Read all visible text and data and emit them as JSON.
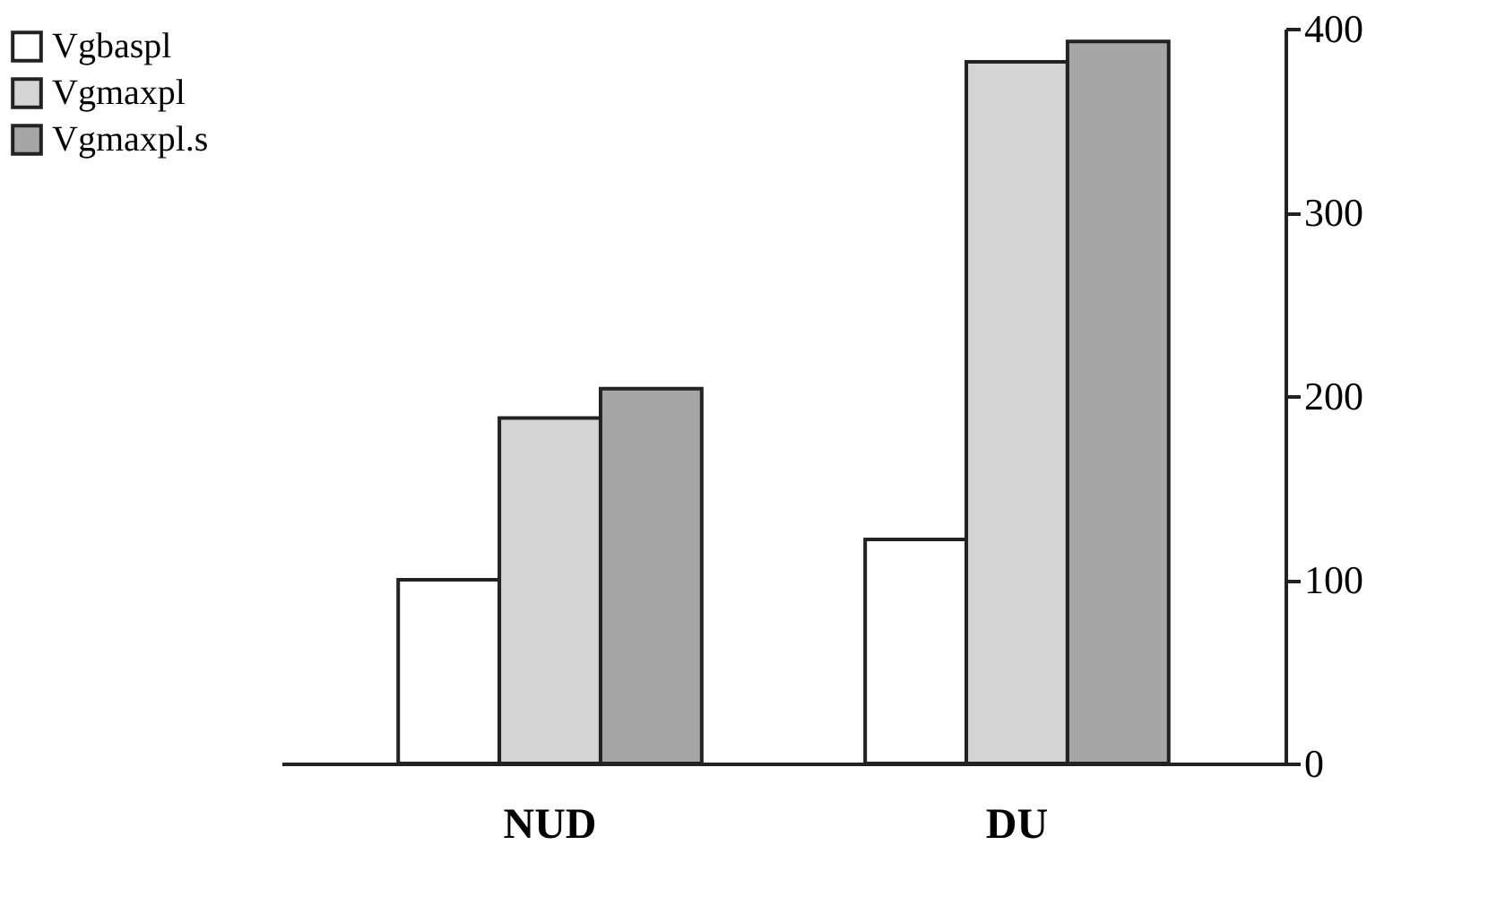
{
  "chart_data": {
    "type": "bar",
    "categories": [
      "NUD",
      "DU"
    ],
    "series": [
      {
        "name": "Vgbaspl",
        "color": "#ffffff",
        "values": [
          100,
          122
        ]
      },
      {
        "name": "Vgmaxpl",
        "color": "#d4d4d4",
        "values": [
          188,
          382
        ]
      },
      {
        "name": "Vgmaxpl.s",
        "color": "#a6a6a6",
        "values": [
          204,
          393
        ]
      }
    ],
    "ylim": [
      0,
      400
    ],
    "yticks": [
      0,
      100,
      200,
      300,
      400
    ],
    "grid": false,
    "legend": "left"
  }
}
